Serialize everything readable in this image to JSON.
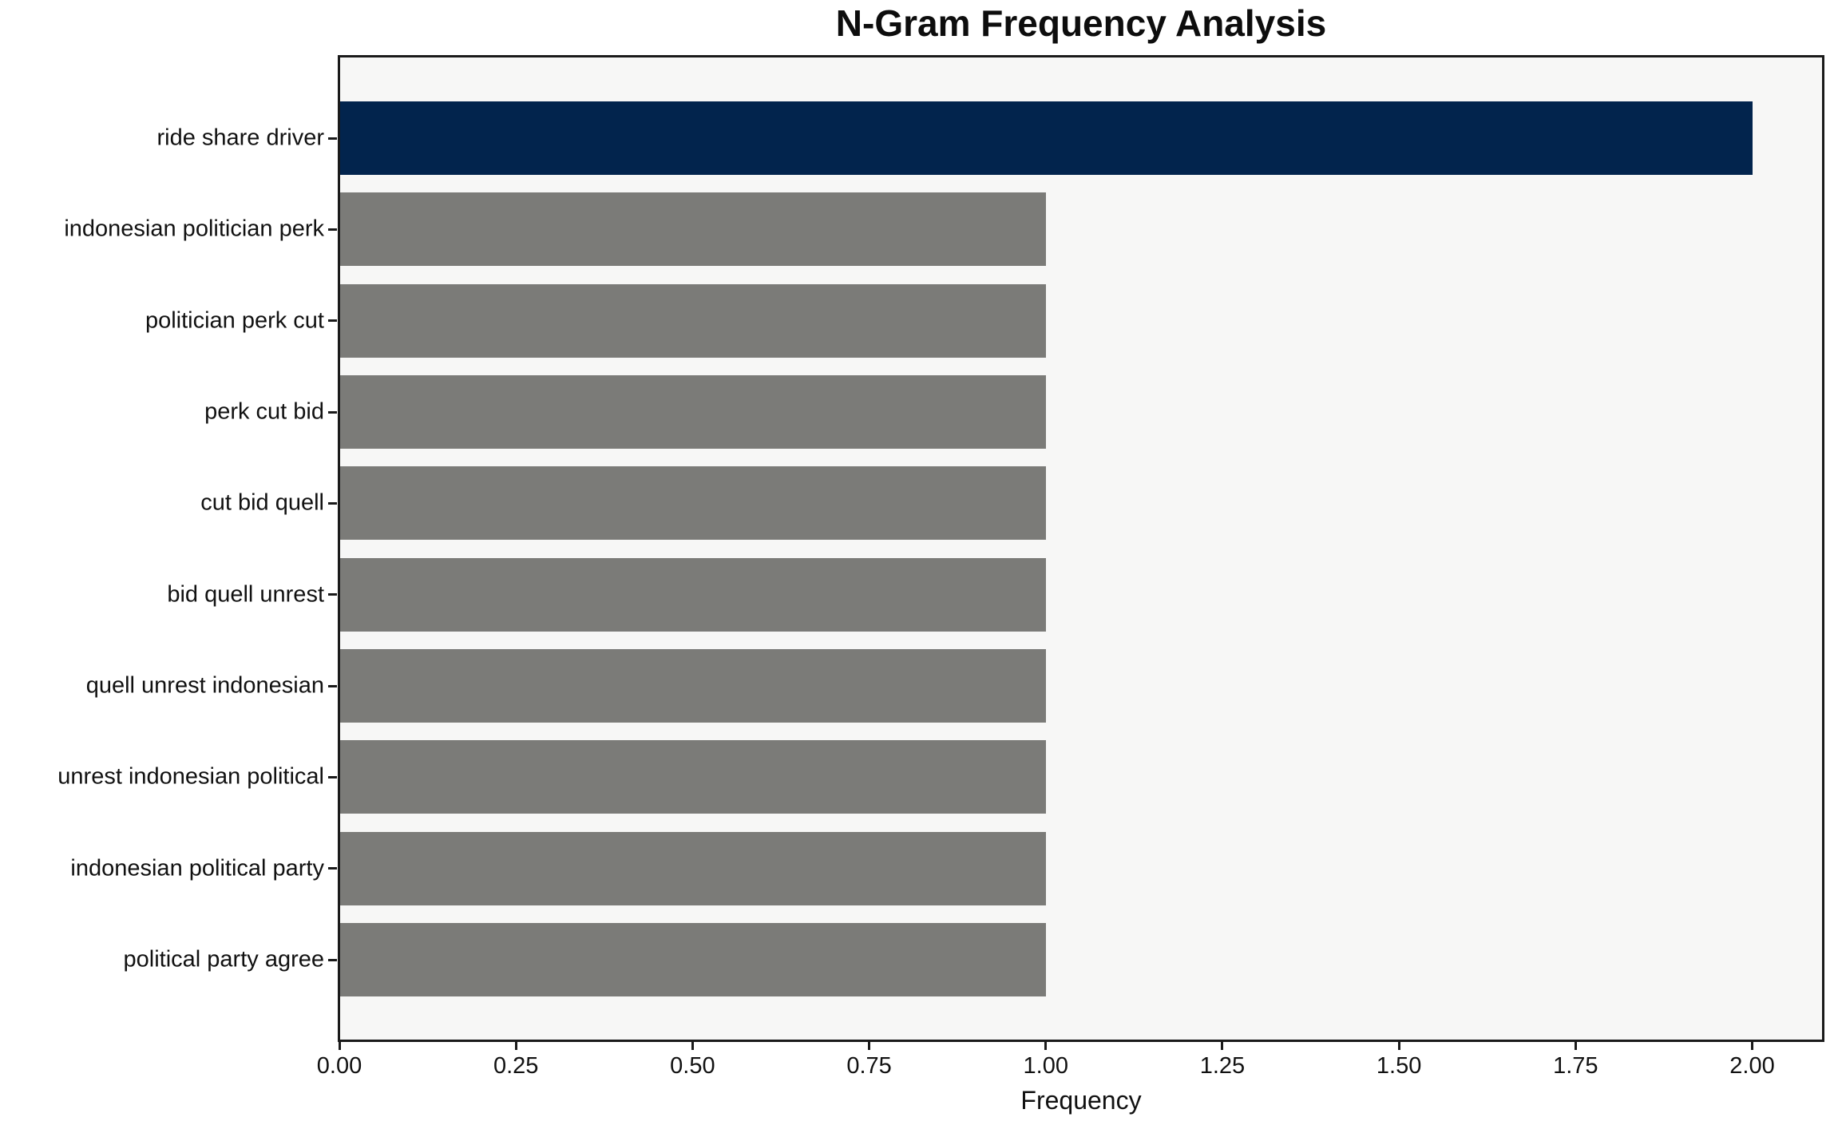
{
  "chart_data": {
    "type": "bar",
    "orientation": "horizontal",
    "title": "N-Gram Frequency Analysis",
    "xlabel": "Frequency",
    "ylabel": "",
    "categories": [
      "ride share driver",
      "indonesian politician perk",
      "politician perk cut",
      "perk cut bid",
      "cut bid quell",
      "bid quell unrest",
      "quell unrest indonesian",
      "unrest indonesian political",
      "indonesian political party",
      "political party agree"
    ],
    "values": [
      2,
      1,
      1,
      1,
      1,
      1,
      1,
      1,
      1,
      1
    ],
    "xlim": [
      0,
      2.1
    ],
    "xticks": [
      "0.00",
      "0.25",
      "0.50",
      "0.75",
      "1.00",
      "1.25",
      "1.50",
      "1.75",
      "2.00"
    ],
    "grid": false,
    "legend": null,
    "colors": {
      "highlight_bar": "#02244d",
      "default_bar": "#7b7b78",
      "highlight_index": 0,
      "plot_background": "#f7f7f6",
      "figure_background": "#ffffff",
      "axis": "#1a1a1a",
      "text": "#111111"
    }
  }
}
